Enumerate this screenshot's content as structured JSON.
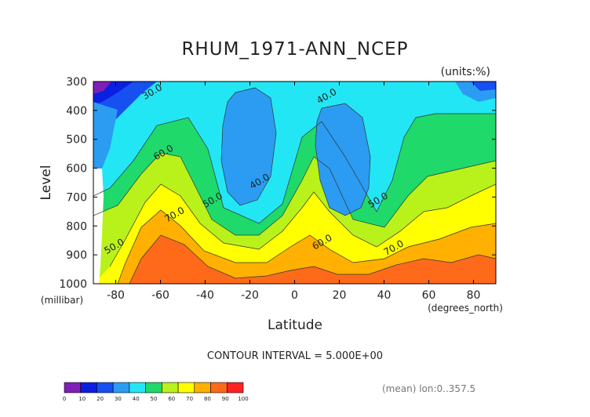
{
  "chart_data": {
    "type": "heatmap",
    "title": "RHUM_1971-ANN_NCEP",
    "units_label": "(units:%)",
    "ylabel": "Level",
    "y_units": "(millibar)",
    "xlabel": "Latitude",
    "x_units": "(degrees_north)",
    "xlim": [
      -90,
      90
    ],
    "ylim": [
      1000,
      300
    ],
    "x_ticks": [
      -80,
      -60,
      -40,
      -20,
      0,
      20,
      40,
      60,
      80
    ],
    "y_ticks": [
      300,
      400,
      500,
      600,
      700,
      800,
      900,
      1000
    ],
    "contour_interval_text": "CONTOUR INTERVAL = 5.000E+00",
    "footer_right": "(mean) lon:0..357.5",
    "contour_labels": [
      {
        "text": "30.0",
        "x": -63,
        "y": 345
      },
      {
        "text": "60.0",
        "x": -58,
        "y": 555
      },
      {
        "text": "70.0",
        "x": -53,
        "y": 770
      },
      {
        "text": "50.0",
        "x": -36,
        "y": 720
      },
      {
        "text": "40.0",
        "x": -15,
        "y": 655
      },
      {
        "text": "40.0",
        "x": 15,
        "y": 360
      },
      {
        "text": "60.0",
        "x": 13,
        "y": 865
      },
      {
        "text": "50.0",
        "x": 38,
        "y": 720
      },
      {
        "text": "70.0",
        "x": 45,
        "y": 885
      },
      {
        "text": "50.0",
        "x": -80,
        "y": 880
      }
    ],
    "colorbar": {
      "levels": [
        0,
        10,
        20,
        30,
        40,
        50,
        60,
        70,
        80,
        90,
        100
      ],
      "colors": [
        "#7f1fb8",
        "#0a1fe0",
        "#1750f0",
        "#2b9cf2",
        "#23e6f5",
        "#1fd96a",
        "#b8f21a",
        "#ffff00",
        "#ffb000",
        "#ff6a1a",
        "#ff2222"
      ]
    }
  }
}
